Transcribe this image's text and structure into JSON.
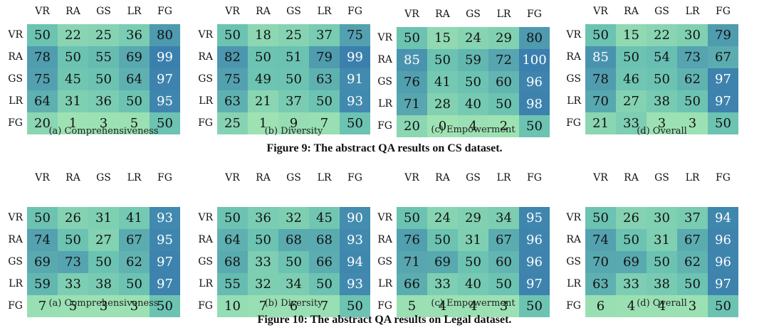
{
  "figures": [
    {
      "caption": "Figure 9: The abstract QA results on CS dataset."
    },
    {
      "caption": "Figure 10: The abstract QA results on Legal dataset."
    }
  ],
  "labels": [
    "VR",
    "RA",
    "GS",
    "LR",
    "FG"
  ],
  "chart_data": [
    {
      "type": "heatmap",
      "figure": 0,
      "title": "(a)  Comprehensiveness",
      "rows": [
        "VR",
        "RA",
        "GS",
        "LR",
        "FG"
      ],
      "cols": [
        "VR",
        "RA",
        "GS",
        "LR",
        "FG"
      ],
      "values": [
        [
          50,
          22,
          25,
          36,
          80
        ],
        [
          78,
          50,
          55,
          69,
          99
        ],
        [
          75,
          45,
          50,
          64,
          97
        ],
        [
          64,
          31,
          36,
          50,
          95
        ],
        [
          20,
          1,
          3,
          5,
          50
        ]
      ]
    },
    {
      "type": "heatmap",
      "figure": 0,
      "title": "(b)  Diversity",
      "rows": [
        "VR",
        "RA",
        "GS",
        "LR",
        "FG"
      ],
      "cols": [
        "VR",
        "RA",
        "GS",
        "LR",
        "FG"
      ],
      "values": [
        [
          50,
          18,
          25,
          37,
          75
        ],
        [
          82,
          50,
          51,
          79,
          99
        ],
        [
          75,
          49,
          50,
          63,
          91
        ],
        [
          63,
          21,
          37,
          50,
          93
        ],
        [
          25,
          1,
          9,
          7,
          50
        ]
      ]
    },
    {
      "type": "heatmap",
      "figure": 0,
      "title": "(c)  Empowerment",
      "rows": [
        "VR",
        "RA",
        "GS",
        "LR",
        "FG"
      ],
      "cols": [
        "VR",
        "RA",
        "GS",
        "LR",
        "FG"
      ],
      "values": [
        [
          50,
          15,
          24,
          29,
          80
        ],
        [
          85,
          50,
          59,
          72,
          100
        ],
        [
          76,
          41,
          50,
          60,
          96
        ],
        [
          71,
          28,
          40,
          50,
          98
        ],
        [
          20,
          0,
          4,
          2,
          50
        ]
      ]
    },
    {
      "type": "heatmap",
      "figure": 0,
      "title": "(d)  Overall",
      "rows": [
        "VR",
        "RA",
        "GS",
        "LR",
        "FG"
      ],
      "cols": [
        "VR",
        "RA",
        "GS",
        "LR",
        "FG"
      ],
      "values": [
        [
          50,
          15,
          22,
          30,
          79
        ],
        [
          85,
          50,
          54,
          73,
          67
        ],
        [
          78,
          46,
          50,
          62,
          97
        ],
        [
          70,
          27,
          38,
          50,
          97
        ],
        [
          21,
          33,
          3,
          3,
          50
        ]
      ]
    },
    {
      "type": "heatmap",
      "figure": 1,
      "title": "(a)  Comprehensiveness",
      "rows": [
        "VR",
        "RA",
        "GS",
        "LR",
        "FG"
      ],
      "cols": [
        "VR",
        "RA",
        "GS",
        "LR",
        "FG"
      ],
      "values": [
        [
          50,
          26,
          31,
          41,
          93
        ],
        [
          74,
          50,
          27,
          67,
          95
        ],
        [
          69,
          73,
          50,
          62,
          97
        ],
        [
          59,
          33,
          38,
          50,
          97
        ],
        [
          7,
          5,
          3,
          3,
          50
        ]
      ]
    },
    {
      "type": "heatmap",
      "figure": 1,
      "title": "(b)  Diversity",
      "rows": [
        "VR",
        "RA",
        "GS",
        "LR",
        "FG"
      ],
      "cols": [
        "VR",
        "RA",
        "GS",
        "LR",
        "FG"
      ],
      "values": [
        [
          50,
          36,
          32,
          45,
          90
        ],
        [
          64,
          50,
          68,
          68,
          93
        ],
        [
          68,
          33,
          50,
          66,
          94
        ],
        [
          55,
          32,
          34,
          50,
          93
        ],
        [
          10,
          7,
          6,
          7,
          50
        ]
      ]
    },
    {
      "type": "heatmap",
      "figure": 1,
      "title": "(c)  Empowerment",
      "rows": [
        "VR",
        "RA",
        "GS",
        "LR",
        "FG"
      ],
      "cols": [
        "VR",
        "RA",
        "GS",
        "LR",
        "FG"
      ],
      "values": [
        [
          50,
          24,
          29,
          34,
          95
        ],
        [
          76,
          50,
          31,
          67,
          96
        ],
        [
          71,
          69,
          50,
          60,
          96
        ],
        [
          66,
          33,
          40,
          50,
          97
        ],
        [
          5,
          4,
          4,
          3,
          50
        ]
      ]
    },
    {
      "type": "heatmap",
      "figure": 1,
      "title": "(d)  Overall",
      "rows": [
        "VR",
        "RA",
        "GS",
        "LR",
        "FG"
      ],
      "cols": [
        "VR",
        "RA",
        "GS",
        "LR",
        "FG"
      ],
      "values": [
        [
          50,
          26,
          30,
          37,
          94
        ],
        [
          74,
          50,
          31,
          67,
          96
        ],
        [
          70,
          69,
          50,
          62,
          96
        ],
        [
          63,
          33,
          38,
          50,
          97
        ],
        [
          6,
          4,
          4,
          3,
          50
        ]
      ]
    }
  ],
  "colors": {
    "low": "#9fe3b3",
    "mid": "#6cc3b2",
    "high": "#3a7fad",
    "text_dark": "#111111",
    "text_light": "#ffffff"
  }
}
